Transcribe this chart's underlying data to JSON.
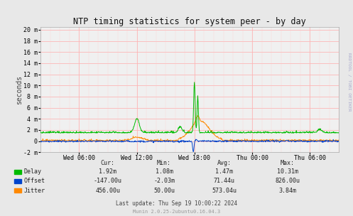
{
  "title": "NTP timing statistics for system peer - by day",
  "ylabel": "seconds",
  "right_label": "RRDTOOL / TOBI OETIKER",
  "background_color": "#e8e8e8",
  "plot_bg_color": "#f0f0f0",
  "grid_color_h": "#ffaaaa",
  "grid_color_v": "#ffcccc",
  "ylim": [
    -0.002,
    0.0205
  ],
  "yticks": [
    -0.002,
    0,
    0.002,
    0.004,
    0.006,
    0.008,
    0.01,
    0.012,
    0.014,
    0.016,
    0.018,
    0.02
  ],
  "ytick_labels": [
    "-2 m",
    "0",
    "2 m",
    "4 m",
    "6 m",
    "8 m",
    "10 m",
    "12 m",
    "14 m",
    "16 m",
    "18 m",
    "20 m"
  ],
  "xtick_labels": [
    "Wed 06:00",
    "Wed 12:00",
    "Wed 18:00",
    "Thu 00:00",
    "Thu 06:00"
  ],
  "delay_color": "#00bb00",
  "offset_color": "#0044cc",
  "jitter_color": "#ff8800",
  "legend_labels": [
    "Delay",
    "Offset",
    "Jitter"
  ],
  "stats_header": [
    "Cur:",
    "Min:",
    "Avg:",
    "Max:"
  ],
  "delay_stats": [
    "1.92m",
    "1.08m",
    "1.47m",
    "10.31m"
  ],
  "offset_stats": [
    "-147.00u",
    "-2.03m",
    "71.44u",
    "826.00u"
  ],
  "jitter_stats": [
    "456.00u",
    "50.00u",
    "573.04u",
    "3.84m"
  ],
  "last_update": "Last update: Thu Sep 19 10:00:22 2024",
  "munin_version": "Munin 2.0.25-2ubuntu0.16.04.3"
}
